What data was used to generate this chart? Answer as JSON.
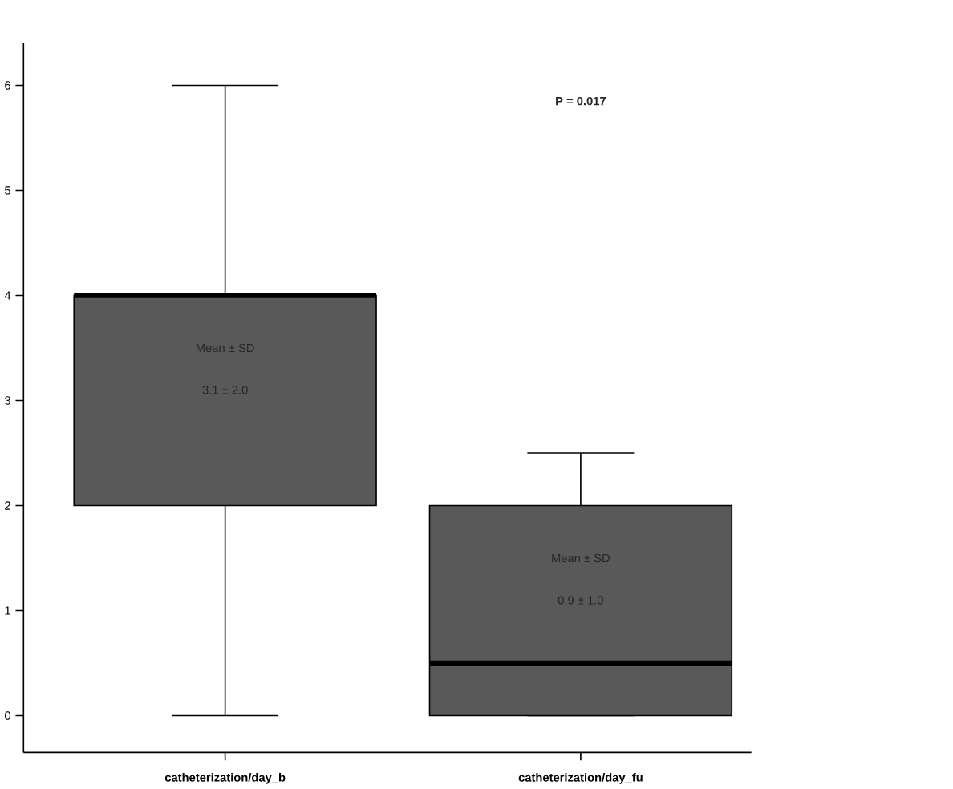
{
  "chart_data": {
    "type": "box",
    "categories": [
      "catheterization/day_b",
      "catheterization/day_fu"
    ],
    "boxes": [
      {
        "low": 0,
        "q1": 2,
        "median": 4,
        "q3": 4,
        "high": 6
      },
      {
        "low": 0,
        "q1": 0,
        "median": 0.5,
        "q3": 2,
        "high": 2.5
      }
    ],
    "color": "#595959",
    "ylim": [
      -0.35,
      6.4
    ],
    "yticks": [
      0,
      1,
      2,
      3,
      4,
      5,
      6
    ],
    "annotations": [
      "P = 0.017",
      "Mean ± SD",
      "3.1 ± 2.0",
      "Mean ± SD",
      "0.9 ± 1.0"
    ]
  }
}
